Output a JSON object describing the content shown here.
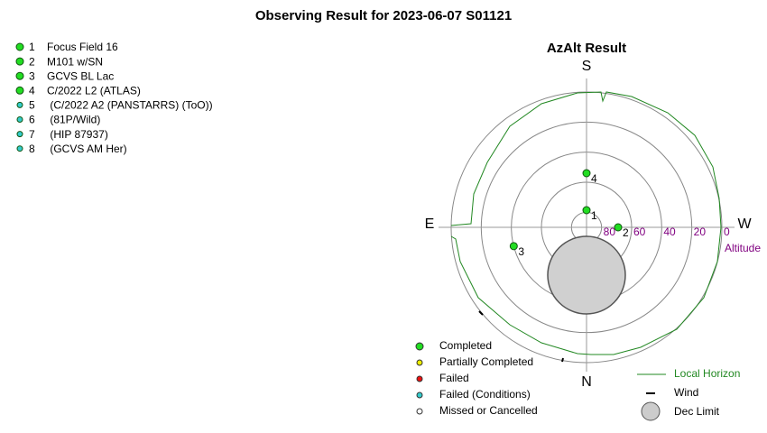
{
  "title": "Observing Result for 2023-06-07  S01121",
  "targets": [
    {
      "number": "1",
      "name": "Focus Field 16",
      "status": "completed"
    },
    {
      "number": "2",
      "name": "M101 w/SN",
      "status": "completed"
    },
    {
      "number": "3",
      "name": "GCVS BL Lac",
      "status": "completed"
    },
    {
      "number": "4",
      "name": "C/2022 L2 (ATLAS)",
      "status": "completed"
    },
    {
      "number": "5",
      "name": " (C/2022 A2 (PANSTARRS) (ToO))",
      "status": "failed_conditions"
    },
    {
      "number": "6",
      "name": " (81P/Wild)",
      "status": "failed_conditions"
    },
    {
      "number": "7",
      "name": " (HIP 87937)",
      "status": "failed_conditions"
    },
    {
      "number": "8",
      "name": " (GCVS AM Her)",
      "status": "failed_conditions"
    }
  ],
  "plot": {
    "title": "AzAlt Result",
    "north": "N",
    "south": "S",
    "east": "E",
    "west": "W",
    "altitude_label": "Altitude",
    "altitude_ticks": [
      80,
      60,
      40,
      20,
      0
    ],
    "points": [
      {
        "label": "1",
        "az": 180,
        "alt": 78.6
      },
      {
        "label": "2",
        "az": 270,
        "alt": 69
      },
      {
        "label": "3",
        "az": 75.5,
        "alt": 40
      },
      {
        "label": "4",
        "az": 180,
        "alt": 54
      }
    ]
  },
  "legend": [
    {
      "key": "completed",
      "label": "Completed",
      "color": "#22dd22"
    },
    {
      "key": "partial",
      "label": "Partially Completed",
      "color": "#eeee00"
    },
    {
      "key": "failed",
      "label": "Failed",
      "color": "#ee1111"
    },
    {
      "key": "failed_conditions",
      "label": "Failed (Conditions)",
      "color": "#33cccc"
    },
    {
      "key": "missed",
      "label": "Missed or Cancelled",
      "color": "#ffffff"
    }
  ],
  "legend2": {
    "horizon": "Local Horizon",
    "wind": "Wind",
    "dec_limit": "Dec Limit"
  }
}
